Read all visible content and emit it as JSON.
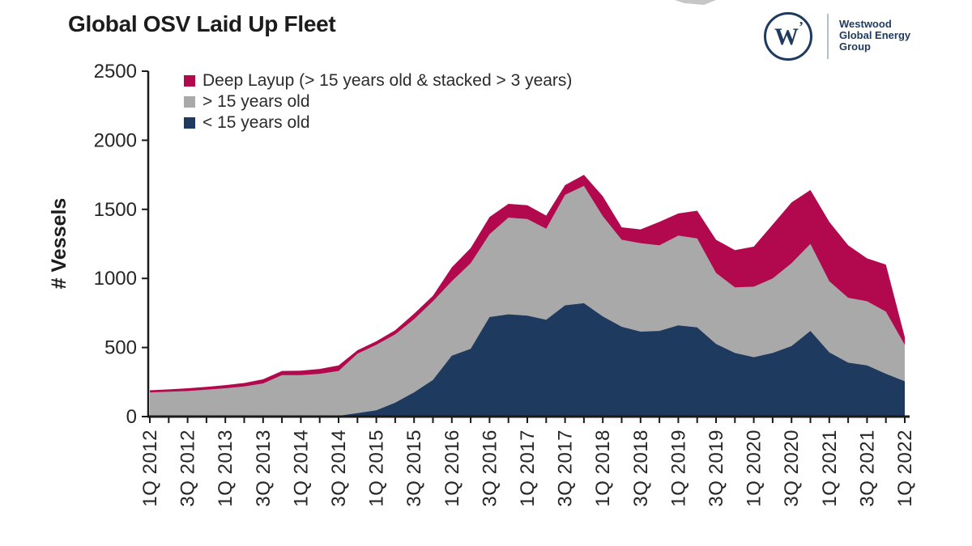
{
  "page": {
    "title": "Global OSV Laid Up Fleet"
  },
  "logo": {
    "monogram": "W",
    "monogram_mark": "’",
    "brand_lines": [
      "Westwood",
      "Global Energy",
      "Group"
    ],
    "brand_color": "#1e3a5f"
  },
  "chart_data": {
    "type": "area",
    "stacked": true,
    "title": "Global OSV Laid Up Fleet",
    "xlabel": "",
    "ylabel": "# Vessels",
    "ylim": [
      0,
      2500
    ],
    "yticks": [
      0,
      500,
      1000,
      1500,
      2000,
      2500
    ],
    "xtick_label_every": 2,
    "grid": false,
    "legend_position": "top-left",
    "axis_color": "#1a1a1a",
    "tick_label_color": "#262626",
    "categories": [
      "1Q 2012",
      "2Q 2012",
      "3Q 2012",
      "4Q 2012",
      "1Q 2013",
      "2Q 2013",
      "3Q 2013",
      "4Q 2013",
      "1Q 2014",
      "2Q 2014",
      "3Q 2014",
      "4Q 2014",
      "1Q 2015",
      "2Q 2015",
      "3Q 2015",
      "4Q 2015",
      "1Q 2016",
      "2Q 2016",
      "3Q 2016",
      "4Q 2016",
      "1Q 2017",
      "2Q 2017",
      "3Q 2017",
      "4Q 2017",
      "1Q 2018",
      "2Q 2018",
      "3Q 2018",
      "4Q 2018",
      "1Q 2019",
      "2Q 2019",
      "3Q 2019",
      "4Q 2019",
      "1Q 2020",
      "2Q 2020",
      "3Q 2020",
      "4Q 2020",
      "1Q 2021",
      "2Q 2021",
      "3Q 2021",
      "4Q 2021",
      "1Q 2022"
    ],
    "series": [
      {
        "name": "Deep Layup (> 15 years old & stacked > 3 years)",
        "color": "#b2094e",
        "values": [
          15,
          17,
          20,
          20,
          23,
          25,
          30,
          30,
          32,
          35,
          40,
          25,
          25,
          30,
          40,
          40,
          100,
          110,
          125,
          100,
          100,
          95,
          70,
          80,
          145,
          90,
          100,
          170,
          160,
          200,
          240,
          270,
          290,
          390,
          440,
          390,
          430,
          380,
          310,
          340,
          55
        ]
      },
      {
        "name": "> 15 years old",
        "color": "#a9a9a9",
        "values": [
          175,
          180,
          185,
          195,
          205,
          218,
          240,
          300,
          300,
          310,
          325,
          430,
          475,
          495,
          530,
          570,
          540,
          620,
          600,
          700,
          700,
          660,
          800,
          850,
          725,
          630,
          640,
          620,
          650,
          645,
          515,
          475,
          510,
          540,
          600,
          630,
          515,
          470,
          465,
          450,
          265
        ]
      },
      {
        "name": "< 15 years old",
        "color": "#1e3a5f",
        "values": [
          0,
          0,
          0,
          0,
          0,
          0,
          0,
          0,
          0,
          0,
          5,
          25,
          45,
          100,
          175,
          265,
          440,
          490,
          720,
          740,
          730,
          700,
          805,
          820,
          725,
          650,
          615,
          620,
          660,
          645,
          525,
          460,
          430,
          460,
          510,
          620,
          465,
          390,
          370,
          310,
          255
        ]
      }
    ],
    "stack_note": "series listed in legend order (top to bottom); stacking bottom-to-top is reverse order"
  }
}
